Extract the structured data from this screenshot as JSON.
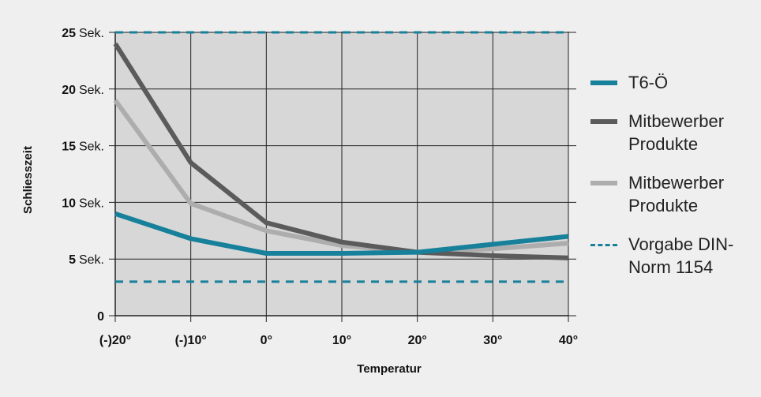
{
  "chart_data": {
    "type": "line",
    "xlabel": "Temperatur",
    "ylabel": "Schliesszeit",
    "categories": [
      "(-)20°",
      "(-)10°",
      "0°",
      "10°",
      "20°",
      "30°",
      "40°"
    ],
    "x_values": [
      -20,
      -10,
      0,
      10,
      20,
      30,
      40
    ],
    "ylim": [
      0,
      26
    ],
    "yticks": [
      {
        "value": 0,
        "num": "0",
        "unit": ""
      },
      {
        "value": 5,
        "num": "5",
        "unit": "Sek."
      },
      {
        "value": 10,
        "num": "10",
        "unit": "Sek."
      },
      {
        "value": 15,
        "num": "15",
        "unit": "Sek."
      },
      {
        "value": 20,
        "num": "20",
        "unit": "Sek."
      },
      {
        "value": 25,
        "num": "25",
        "unit": "Sek."
      }
    ],
    "grid": true,
    "legend_position": "right",
    "series": [
      {
        "name": "T6-Ö",
        "color": "#17809a",
        "style": "solid",
        "points": [
          [
            -20,
            9.0
          ],
          [
            -10,
            6.8
          ],
          [
            0,
            5.5
          ],
          [
            10,
            5.5
          ],
          [
            20,
            5.6
          ],
          [
            30,
            6.3
          ],
          [
            40,
            7.0
          ]
        ]
      },
      {
        "name": "Mitbewerber Produkte",
        "color": "#5b5b5b",
        "style": "solid",
        "points": [
          [
            -20,
            24.0
          ],
          [
            -10,
            13.5
          ],
          [
            0,
            8.2
          ],
          [
            10,
            6.5
          ],
          [
            20,
            5.6
          ],
          [
            30,
            5.3
          ],
          [
            40,
            5.1
          ]
        ]
      },
      {
        "name": "Mitbewerber Produkte",
        "color": "#adadad",
        "style": "solid",
        "points": [
          [
            -20,
            19.0
          ],
          [
            -10,
            9.9
          ],
          [
            0,
            7.5
          ],
          [
            10,
            6.2
          ],
          [
            20,
            5.6
          ],
          [
            30,
            5.9
          ],
          [
            40,
            6.4
          ]
        ]
      },
      {
        "name": "Vorgabe DIN-Norm 1154",
        "color": "#17809a",
        "style": "dashed",
        "lines": [
          25.0,
          3.0
        ]
      }
    ]
  },
  "legend": {
    "items": [
      {
        "label_lines": [
          "T6-Ö"
        ],
        "color": "#17809a",
        "style": "solid"
      },
      {
        "label_lines": [
          "Mitbewerber",
          "Produkte"
        ],
        "color": "#5b5b5b",
        "style": "solid"
      },
      {
        "label_lines": [
          "Mitbewerber",
          "Produkte"
        ],
        "color": "#adadad",
        "style": "solid"
      },
      {
        "label_lines": [
          "Vorgabe DIN-",
          "Norm 1154"
        ],
        "color": "#17809a",
        "style": "dashed"
      }
    ]
  },
  "colors": {
    "plot_bg": "#d7d7d7",
    "page_bg": "#efefef",
    "grid": "#222222"
  }
}
